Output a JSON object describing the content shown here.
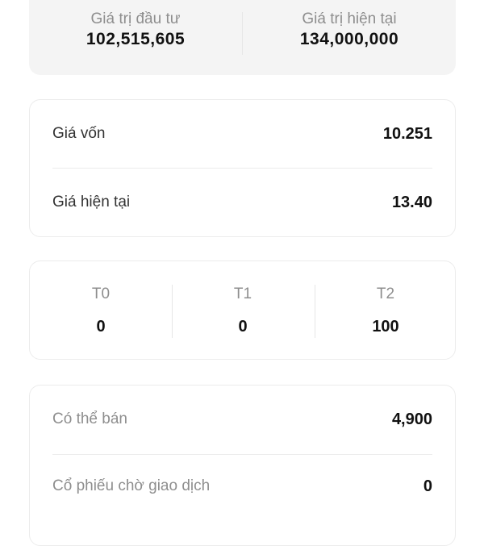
{
  "summary": {
    "invested_label": "Giá trị đầu tư",
    "invested_value": "102,515,605",
    "current_label": "Giá trị hiện tại",
    "current_value": "134,000,000"
  },
  "prices": {
    "cost_label": "Giá vốn",
    "cost_value": "10.251",
    "current_label": "Giá hiện tại",
    "current_value": "13.40"
  },
  "settlement": [
    {
      "label": "T0",
      "value": "0"
    },
    {
      "label": "T1",
      "value": "0"
    },
    {
      "label": "T2",
      "value": "100"
    }
  ],
  "availability": {
    "sellable_label": "Có thể bán",
    "sellable_value": "4,900",
    "pending_label": "Cổ phiếu chờ giao dịch",
    "pending_value": "0"
  }
}
